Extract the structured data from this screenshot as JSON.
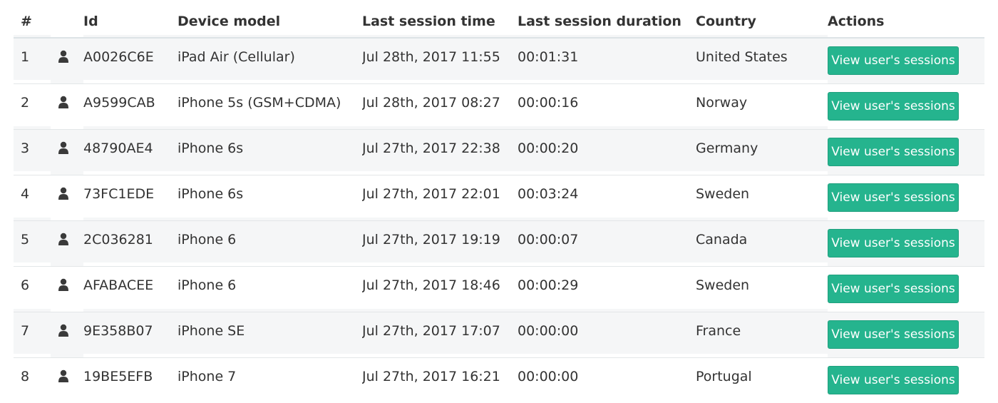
{
  "table": {
    "headers": {
      "num": "#",
      "icon": "",
      "id": "Id",
      "model": "Device model",
      "time": "Last session time",
      "duration": "Last session duration",
      "country": "Country",
      "actions": "Actions"
    },
    "rows": [
      {
        "num": "1",
        "id": "A0026C6E",
        "model": "iPad Air (Cellular)",
        "time": "Jul 28th, 2017 11:55",
        "duration": "00:01:31",
        "country": "United States",
        "action": "View user's sessions"
      },
      {
        "num": "2",
        "id": "A9599CAB",
        "model": "iPhone 5s (GSM+CDMA)",
        "time": "Jul 28th, 2017 08:27",
        "duration": "00:00:16",
        "country": "Norway",
        "action": "View user's sessions"
      },
      {
        "num": "3",
        "id": "48790AE4",
        "model": "iPhone 6s",
        "time": "Jul 27th, 2017 22:38",
        "duration": "00:00:20",
        "country": "Germany",
        "action": "View user's sessions"
      },
      {
        "num": "4",
        "id": "73FC1EDE",
        "model": "iPhone 6s",
        "time": "Jul 27th, 2017 22:01",
        "duration": "00:03:24",
        "country": "Sweden",
        "action": "View user's sessions"
      },
      {
        "num": "5",
        "id": "2C036281",
        "model": "iPhone 6",
        "time": "Jul 27th, 2017 19:19",
        "duration": "00:00:07",
        "country": "Canada",
        "action": "View user's sessions"
      },
      {
        "num": "6",
        "id": "AFABACEE",
        "model": "iPhone 6",
        "time": "Jul 27th, 2017 18:46",
        "duration": "00:00:29",
        "country": "Sweden",
        "action": "View user's sessions"
      },
      {
        "num": "7",
        "id": "9E358B07",
        "model": "iPhone SE",
        "time": "Jul 27th, 2017 17:07",
        "duration": "00:00:00",
        "country": "France",
        "action": "View user's sessions"
      },
      {
        "num": "8",
        "id": "19BE5EFB",
        "model": "iPhone 7",
        "time": "Jul 27th, 2017 16:21",
        "duration": "00:00:00",
        "country": "Portugal",
        "action": "View user's sessions"
      }
    ],
    "row_icon": "user-icon"
  },
  "colors": {
    "button_bg": "#25b48e",
    "button_text": "#ffffff",
    "row_stripe": "#f5f6f7",
    "text": "#333333"
  }
}
